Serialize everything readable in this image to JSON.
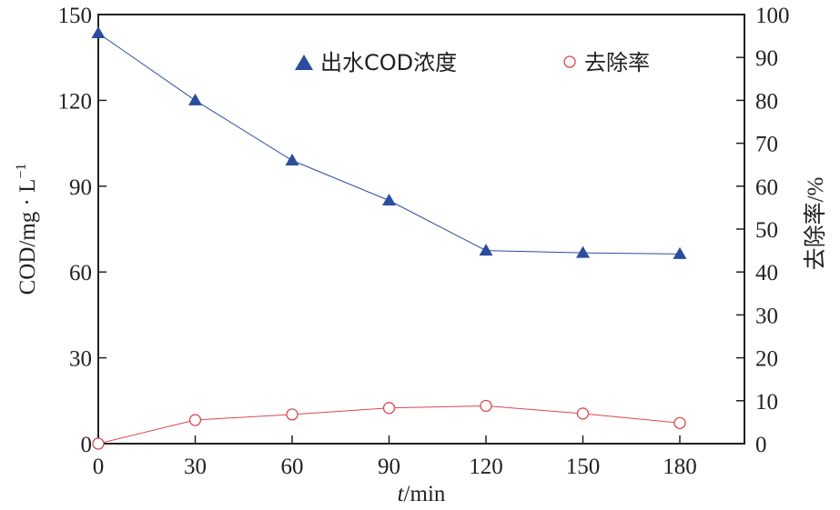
{
  "chart_data": {
    "type": "line",
    "x": [
      0,
      30,
      60,
      90,
      120,
      150,
      180
    ],
    "xlabel_italic": "t",
    "xlabel_rest": "/min",
    "ylabel_left": "COD/mg · L",
    "ylabel_left_sup": "−1",
    "ylabel_right": "去除率/%",
    "xlim": [
      0,
      200
    ],
    "ylim_left": [
      0,
      150
    ],
    "ylim_right": [
      0,
      100
    ],
    "x_ticks": [
      0,
      30,
      60,
      90,
      120,
      150,
      180
    ],
    "x_tick_labels": [
      "0",
      "30",
      "60",
      "90",
      "120",
      "150",
      "180"
    ],
    "y_left_ticks": [
      0,
      30,
      60,
      90,
      120,
      150
    ],
    "y_left_tick_labels": [
      "0",
      "30",
      "60",
      "90",
      "120",
      "150"
    ],
    "y_right_ticks": [
      0,
      10,
      20,
      30,
      40,
      50,
      60,
      70,
      80,
      90,
      100
    ],
    "y_right_tick_labels": [
      "0",
      "10",
      "20",
      "30",
      "40",
      "50",
      "60",
      "70",
      "80",
      "90",
      "100"
    ],
    "grid": false,
    "legend_position": "top-right",
    "series": [
      {
        "name": "出水COD浓度",
        "axis": "left",
        "marker": "filled-triangle",
        "color": "#2b4d9e",
        "values": [
          143.5,
          120,
          99,
          85,
          67.5,
          66.7,
          66.3
        ]
      },
      {
        "name": "去除率",
        "axis": "right",
        "marker": "open-circle",
        "color": "#d9474f",
        "values": [
          0,
          5.5,
          6.8,
          8.3,
          8.8,
          7.0,
          4.8
        ]
      }
    ]
  }
}
